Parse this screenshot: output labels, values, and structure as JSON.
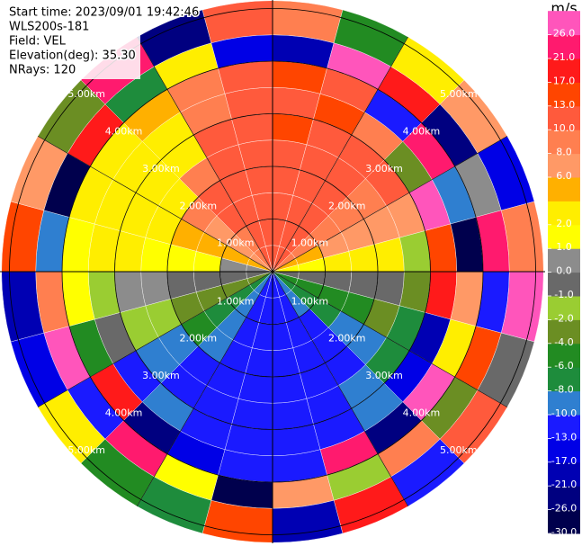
{
  "chart_data": {
    "type": "ppi",
    "info_lines": [
      "Start time: 2023/09/01 19:42:46",
      "WLS200s-181",
      "Field: VEL",
      "Elevation(deg): 35.30",
      "NRays: 120"
    ],
    "azimuth_edges": [
      0,
      15,
      30,
      45,
      60,
      75,
      90,
      105,
      120,
      135,
      150,
      165,
      180,
      195,
      210,
      225,
      240,
      255,
      270,
      285,
      300,
      315,
      330,
      345,
      360
    ],
    "range_edges": [
      0,
      0.5,
      1,
      1.5,
      2,
      2.5,
      3,
      3.5,
      4,
      4.5,
      5.15
    ],
    "values": [
      [
        12,
        12,
        11,
        11,
        12,
        13,
        12,
        13,
        -21,
        8
      ],
      [
        12,
        12,
        11,
        11,
        12,
        12,
        13,
        10,
        26,
        -6
      ],
      [
        10,
        10,
        11,
        11,
        11,
        12,
        8,
        -13,
        17,
        2
      ],
      [
        8,
        8,
        9,
        9,
        9,
        10,
        -4,
        21,
        -26,
        6
      ],
      [
        5,
        5,
        6,
        6,
        6,
        7,
        26,
        -10,
        0,
        -17
      ],
      [
        1.5,
        1.5,
        2,
        2,
        3,
        -2,
        13,
        -30,
        21,
        8
      ],
      [
        -0.5,
        -0.5,
        -1,
        -1,
        -1,
        -3,
        17,
        6,
        -13,
        26
      ],
      [
        -5,
        -5,
        -5,
        -5,
        -4,
        -8,
        -21,
        2,
        13,
        -1
      ],
      [
        -8,
        -8,
        -8,
        -9,
        -9,
        -7,
        -17,
        26,
        -4,
        10
      ],
      [
        -10,
        -10,
        -11,
        -11,
        -11,
        -9,
        -9,
        -26,
        8,
        -13
      ],
      [
        -12,
        -12,
        -12,
        -11,
        -12,
        -12,
        -11,
        21,
        -2,
        17
      ],
      [
        -12,
        -12,
        -12,
        -13,
        -12,
        -12,
        -12,
        -12,
        6,
        -21
      ],
      [
        -12,
        -12,
        -12,
        -12,
        -12,
        -13,
        -12,
        -12,
        -30,
        13
      ],
      [
        -12,
        -12,
        -11,
        -11,
        -12,
        -12,
        -12,
        -14,
        1,
        -8
      ],
      [
        -10,
        -10,
        -10,
        -9,
        -11,
        -11,
        -9,
        -26,
        21,
        -6
      ],
      [
        -7,
        -7,
        -7,
        -6,
        -9,
        -9,
        -12,
        17,
        -13,
        2
      ],
      [
        -4,
        -4,
        -3,
        -3,
        -2,
        -2,
        -1,
        -5,
        26,
        -17
      ],
      [
        -1,
        -1,
        -0.5,
        -0.5,
        0.5,
        0.5,
        -1.5,
        1.5,
        8,
        -21
      ],
      [
        0.5,
        0.5,
        1,
        1.5,
        1.5,
        3,
        3,
        1.5,
        -10,
        13
      ],
      [
        4,
        4,
        4,
        5,
        3,
        3,
        3,
        3,
        -30,
        6
      ],
      [
        7,
        7,
        7,
        8,
        3,
        3,
        3,
        3,
        17,
        -4
      ],
      [
        9,
        9,
        10,
        10,
        9,
        3,
        3,
        5,
        -8,
        21
      ],
      [
        11,
        11,
        11,
        11,
        11,
        10,
        8,
        9,
        2,
        -26
      ],
      [
        12,
        12,
        12,
        12,
        12,
        12,
        12,
        11,
        -17,
        10
      ]
    ],
    "range_rings": [
      {
        "value": 1,
        "label": "1.00km"
      },
      {
        "value": 2,
        "label": "2.00km"
      },
      {
        "value": 3,
        "label": "3.00km"
      },
      {
        "value": 4,
        "label": "4.00km"
      },
      {
        "value": 5,
        "label": "5.00km"
      }
    ],
    "colorbar": {
      "title": "m/s",
      "bounds": [
        -30,
        -26,
        -21,
        -17,
        -13,
        -10,
        -8,
        -6,
        -4,
        -2,
        -1,
        0,
        1,
        2,
        4,
        6,
        8,
        10,
        13,
        17,
        21,
        26,
        30
      ],
      "colors": [
        "#00004d",
        "#000080",
        "#0000b3",
        "#0000e6",
        "#1a1aff",
        "#2f7fd0",
        "#1e8c3c",
        "#228b22",
        "#6b8e23",
        "#9acd32",
        "#696969",
        "#8c8c8c",
        "#ffff00",
        "#ffee00",
        "#ffb000",
        "#ff9966",
        "#ff7f50",
        "#ff5a3c",
        "#ff4500",
        "#ff1a1a",
        "#ff1a6e",
        "#ff55bb"
      ],
      "ticks": [
        {
          "value": -30,
          "label": "-30.0"
        },
        {
          "value": -26,
          "label": "-26.0"
        },
        {
          "value": -21,
          "label": "-21.0"
        },
        {
          "value": -17,
          "label": "-17.0"
        },
        {
          "value": -13,
          "label": "-13.0"
        },
        {
          "value": -10,
          "label": "-10.0"
        },
        {
          "value": -8,
          "label": "-8.0"
        },
        {
          "value": -6,
          "label": "-6.0"
        },
        {
          "value": -4,
          "label": "-4.0"
        },
        {
          "value": -2,
          "label": "-2.0"
        },
        {
          "value": -1,
          "label": "-1.0"
        },
        {
          "value": 0,
          "label": "0.0"
        },
        {
          "value": 1,
          "label": "1.0"
        },
        {
          "value": 2,
          "label": "2.0"
        },
        {
          "value": 6,
          "label": "6.0"
        },
        {
          "value": 8,
          "label": "8.0"
        },
        {
          "value": 10,
          "label": "10.0"
        },
        {
          "value": 13,
          "label": "13.0"
        },
        {
          "value": 17,
          "label": "17.0"
        },
        {
          "value": 21,
          "label": "21.0"
        },
        {
          "value": 26,
          "label": "26.0"
        }
      ]
    }
  }
}
